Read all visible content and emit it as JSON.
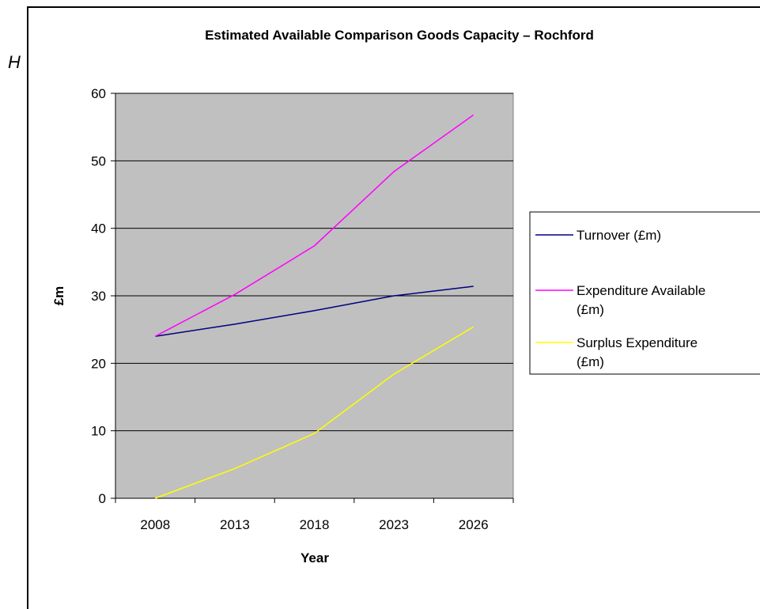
{
  "stray_text": "H",
  "chart_data": {
    "type": "line",
    "title": "Estimated Available Comparison Goods Capacity – Rochford",
    "xlabel": "Year",
    "ylabel": "£m",
    "categories": [
      "2008",
      "2013",
      "2018",
      "2023",
      "2026"
    ],
    "ylim": [
      0,
      60
    ],
    "yticks": [
      0,
      10,
      20,
      30,
      40,
      50,
      60
    ],
    "grid": true,
    "plot_background": "#c0c0c0",
    "legend_position": "right",
    "series": [
      {
        "name": "Turnover (£m)",
        "color": "#000080",
        "values": [
          24,
          25.8,
          27.8,
          30,
          31.4
        ]
      },
      {
        "name": "Expenditure Available (£m)",
        "color": "#ff00ff",
        "values": [
          24,
          30.2,
          37.4,
          48.4,
          56.8
        ]
      },
      {
        "name": "Surplus Expenditure (£m)",
        "color": "#ffff00",
        "values": [
          0,
          4.4,
          9.6,
          18.4,
          25.4
        ]
      }
    ]
  }
}
